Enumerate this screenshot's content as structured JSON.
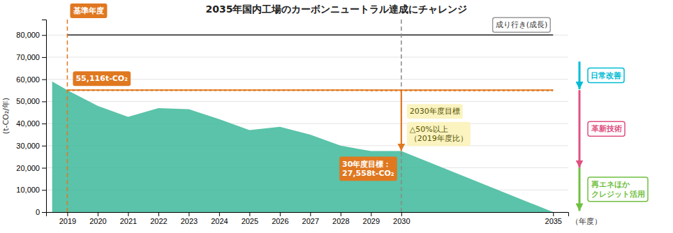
{
  "chart_data": {
    "type": "area",
    "title": "2035年国内工場のカーボンニュートラル達成にチャレンジ",
    "ylabel": "(t-CO₂/年)",
    "xlabel": "（年度）",
    "xlim": [
      2018.3,
      2035.5
    ],
    "xticks": [
      2019,
      2020,
      2021,
      2022,
      2023,
      2024,
      2025,
      2026,
      2027,
      2028,
      2029,
      2030,
      2035
    ],
    "ylim": [
      0,
      87000
    ],
    "yticks": [
      0,
      {
        "value": 10000,
        "label": "10,000"
      },
      {
        "value": 20000,
        "label": "20,000"
      },
      {
        "value": 30000,
        "label": "30,000"
      },
      {
        "value": 40000,
        "label": "40,000"
      },
      {
        "value": 50000,
        "label": "50,000"
      },
      {
        "value": 60000,
        "label": "60,000"
      },
      {
        "value": 70000,
        "label": "70,000"
      },
      {
        "value": 80000,
        "label": "80,000"
      }
    ],
    "grid": true,
    "series": [
      {
        "type": "area",
        "x": [
          2018.5,
          2019,
          2020,
          2021,
          2022,
          2023,
          2024,
          2025,
          2026,
          2027,
          2028,
          2029,
          2030,
          2035
        ],
        "values": [
          59000,
          55116,
          48000,
          43000,
          47000,
          46500,
          42000,
          37000,
          38500,
          35000,
          30000,
          27558,
          27558,
          0
        ],
        "color": "#3db89a"
      },
      {
        "type": "line",
        "x": [
          2019,
          2035
        ],
        "values": [
          80000,
          80000
        ],
        "color": "#404040",
        "line_style": "solid",
        "label": "成り行き(成長)"
      },
      {
        "type": "line",
        "x": [
          2019,
          2035
        ],
        "values": [
          55116,
          55000
        ],
        "color": "#e07820",
        "line_style": "dotted"
      },
      {
        "type": "line",
        "x": [
          2019,
          2035
        ],
        "values": [
          55116,
          55116
        ],
        "color": "#e07820",
        "line_style": "solid",
        "label": "55,116t-CO₂"
      }
    ],
    "annotations": [
      {
        "type": "vline",
        "x": 2019,
        "color": "#e07820",
        "line_style": "dashed",
        "text": [
          "基準年度"
        ]
      },
      {
        "type": "vline",
        "x": 2030,
        "color": "#888888",
        "line_style": "dashed"
      },
      {
        "type": "arrow",
        "x": 2030,
        "from": 55116,
        "to": 27558,
        "color": "#e07820",
        "labels": [
          [
            "2030年度目標"
          ],
          [
            "△50%以上",
            "（2019年度比）"
          ],
          [
            "30年度目標：",
            "27,558t-CO₂"
          ]
        ]
      },
      {
        "type": "side_arrow",
        "from": 68000,
        "to": 55500,
        "color": "#00bcd4",
        "text": [
          "日常改善"
        ]
      },
      {
        "type": "side_arrow",
        "from": 55116,
        "to": 20000,
        "color": "#e05080",
        "text": [
          "革新技術"
        ]
      },
      {
        "type": "side_arrow",
        "from": 20000,
        "to": 500,
        "color": "#70c040",
        "text": [
          "再エネほか",
          "クレジット活用"
        ]
      }
    ]
  }
}
